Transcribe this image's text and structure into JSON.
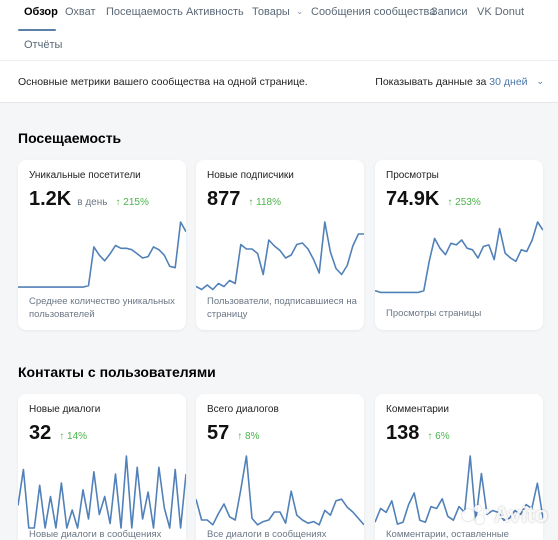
{
  "nav": {
    "tabs": [
      {
        "label": "Обзор",
        "active": true
      },
      {
        "label": "Охват"
      },
      {
        "label": "Посещаемость"
      },
      {
        "label": "Активность"
      },
      {
        "label": "Товары"
      },
      {
        "label": "Сообщения сообщества"
      },
      {
        "label": "Записи"
      },
      {
        "label": "VK Donut"
      }
    ],
    "reports": "Отчёты"
  },
  "header": {
    "subtitle": "Основные метрики вашего сообщества на одной странице.",
    "period_prefix": "Показывать данные за",
    "period_value": "30 дней"
  },
  "sections": [
    {
      "title": "Посещаемость",
      "cards": [
        {
          "title": "Уникальные посетители",
          "value": "1.2K",
          "unit": "в день",
          "delta": "215%",
          "desc": "Среднее количество уникальных пользователей",
          "series": [
            5,
            5,
            5,
            5,
            5,
            5,
            5,
            5,
            5,
            5,
            5,
            5,
            5,
            6,
            34,
            28,
            24,
            29,
            35,
            33,
            33,
            32,
            29,
            26,
            27,
            34,
            32,
            28,
            20,
            19,
            52,
            45
          ]
        },
        {
          "title": "Новые подписчики",
          "value": "877",
          "unit": "",
          "delta": "118%",
          "desc": "Пользователи, подписавшиеся на страницу",
          "series": [
            5,
            3,
            6,
            3,
            7,
            5,
            9,
            7,
            33,
            30,
            30,
            27,
            13,
            36,
            32,
            29,
            24,
            26,
            33,
            34,
            30,
            23,
            14,
            48,
            28,
            17,
            13,
            19,
            32,
            40,
            40
          ]
        },
        {
          "title": "Просмотры",
          "value": "74.9K",
          "unit": "",
          "delta": "253%",
          "desc": "Просмотры страницы",
          "series": [
            2,
            1,
            1,
            1,
            1,
            1,
            1,
            1,
            1,
            2,
            20,
            34,
            28,
            24,
            31,
            30,
            33,
            28,
            27,
            22,
            29,
            30,
            21,
            40,
            25,
            22,
            20,
            27,
            26,
            33,
            44,
            39
          ]
        }
      ]
    },
    {
      "title": "Контакты с пользователями",
      "cards": [
        {
          "title": "Новые диалоги",
          "value": "32",
          "unit": "",
          "delta": "14%",
          "desc": "Новые диалоги в сообщениях",
          "series": [
            10,
            26,
            0,
            0,
            19,
            0,
            14,
            0,
            20,
            0,
            8,
            0,
            17,
            4,
            25,
            6,
            14,
            2,
            24,
            0,
            32,
            0,
            27,
            4,
            16,
            0,
            27,
            9,
            0,
            26,
            0,
            24
          ]
        },
        {
          "title": "Всего диалогов",
          "value": "57",
          "unit": "",
          "delta": "8%",
          "desc": "Все диалоги в сообщениях",
          "series": [
            18,
            5,
            5,
            2,
            9,
            15,
            7,
            5,
            24,
            45,
            6,
            2,
            4,
            5,
            10,
            10,
            3,
            23,
            8,
            5,
            3,
            4,
            2,
            11,
            8,
            17,
            18,
            13,
            10,
            6,
            2
          ]
        },
        {
          "title": "Комментарии",
          "value": "138",
          "unit": "",
          "delta": "6%",
          "desc": "Комментарии, оставленные",
          "series": [
            3,
            10,
            8,
            14,
            2,
            3,
            12,
            18,
            4,
            3,
            11,
            10,
            15,
            6,
            4,
            11,
            8,
            37,
            4,
            28,
            7,
            9,
            8,
            4,
            5,
            9,
            7,
            12,
            10,
            23,
            5
          ]
        }
      ]
    }
  ],
  "watermark": "Avito",
  "colors": {
    "accent": "#4a76a8",
    "line": "#5181b8",
    "positive": "#4bb34b",
    "tab_underline": "#5b7fa6"
  },
  "icons": {
    "delta": "arrow-up-icon",
    "dropdown": "chevron-down-icon"
  }
}
